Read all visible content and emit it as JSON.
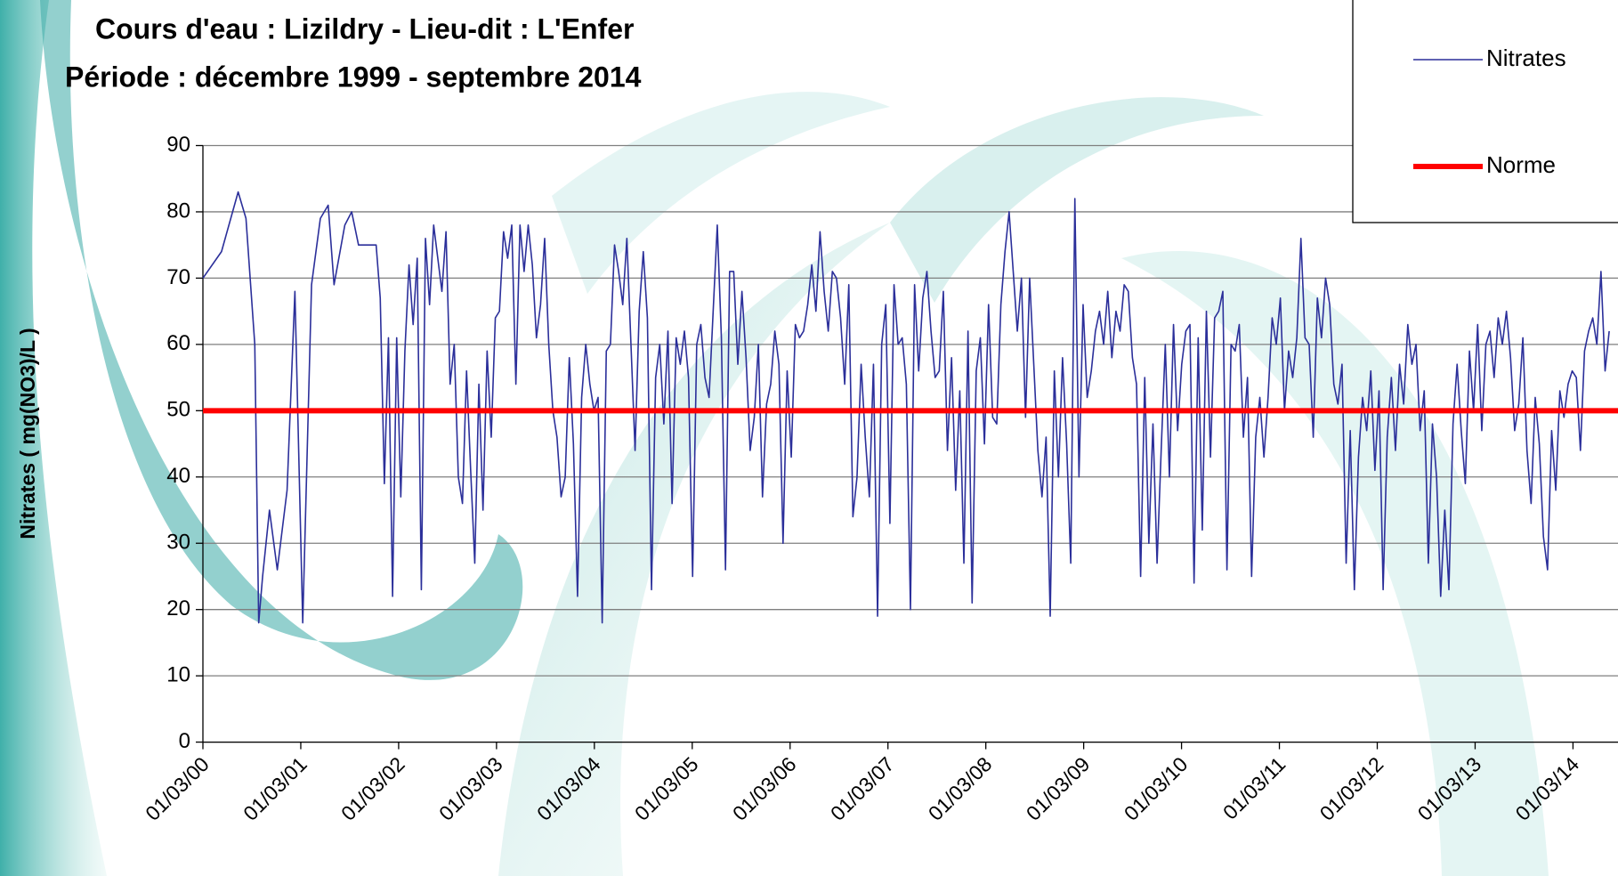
{
  "chart_data": {
    "type": "line",
    "title": "Cours d'eau : Lizildry  -  Lieu-dit : L'Enfer",
    "subtitle": "Période : décembre 1999 - septembre 2014",
    "ylabel": "Nitrates ( mg(NO3)/L )",
    "xlim": [
      2000.16,
      2014.62
    ],
    "ylim": [
      0,
      90
    ],
    "yticks": [
      0,
      10,
      20,
      30,
      40,
      50,
      60,
      70,
      80,
      90
    ],
    "xticks": [
      {
        "value": 2000.16,
        "label": "01/03/00"
      },
      {
        "value": 2001.16,
        "label": "01/03/01"
      },
      {
        "value": 2002.16,
        "label": "01/03/02"
      },
      {
        "value": 2003.16,
        "label": "01/03/03"
      },
      {
        "value": 2004.16,
        "label": "01/03/04"
      },
      {
        "value": 2005.16,
        "label": "01/03/05"
      },
      {
        "value": 2006.16,
        "label": "01/03/06"
      },
      {
        "value": 2007.16,
        "label": "01/03/07"
      },
      {
        "value": 2008.16,
        "label": "01/03/08"
      },
      {
        "value": 2009.16,
        "label": "01/03/09"
      },
      {
        "value": 2010.16,
        "label": "01/03/10"
      },
      {
        "value": 2011.16,
        "label": "01/03/11"
      },
      {
        "value": 2012.16,
        "label": "01/03/12"
      },
      {
        "value": 2013.16,
        "label": "01/03/13"
      },
      {
        "value": 2014.16,
        "label": "01/03/14"
      }
    ],
    "grid": true,
    "legend": "top-right",
    "series": [
      {
        "name": "Nitrates",
        "color": "#2b2f9a",
        "width": 1.6,
        "x": [
          2000.16,
          2000.35,
          2000.52,
          2000.6,
          2000.69,
          2000.73,
          2000.77,
          2000.84,
          2000.92,
          2001.02,
          2001.1,
          2001.18,
          2001.27,
          2001.36,
          2001.44,
          2001.5,
          2001.61,
          2001.68,
          2001.75,
          2001.93,
          2001.972,
          2002.014,
          2002.056,
          2002.098,
          2002.14,
          2002.182,
          2002.224,
          2002.266,
          2002.308,
          2002.35,
          2002.392,
          2002.434,
          2002.476,
          2002.518,
          2002.56,
          2002.602,
          2002.644,
          2002.686,
          2002.728,
          2002.77,
          2002.812,
          2002.854,
          2002.896,
          2002.938,
          2002.98,
          2003.022,
          2003.064,
          2003.106,
          2003.148,
          2003.19,
          2003.232,
          2003.274,
          2003.316,
          2003.358,
          2003.4,
          2003.442,
          2003.484,
          2003.526,
          2003.568,
          2003.61,
          2003.652,
          2003.694,
          2003.736,
          2003.778,
          2003.82,
          2003.862,
          2003.904,
          2003.946,
          2003.988,
          2004.03,
          2004.072,
          2004.114,
          2004.156,
          2004.198,
          2004.24,
          2004.282,
          2004.324,
          2004.366,
          2004.408,
          2004.45,
          2004.492,
          2004.534,
          2004.576,
          2004.618,
          2004.66,
          2004.702,
          2004.744,
          2004.786,
          2004.828,
          2004.87,
          2004.912,
          2004.954,
          2004.996,
          2005.038,
          2005.08,
          2005.122,
          2005.164,
          2005.206,
          2005.248,
          2005.29,
          2005.332,
          2005.374,
          2005.416,
          2005.458,
          2005.5,
          2005.542,
          2005.584,
          2005.626,
          2005.668,
          2005.71,
          2005.752,
          2005.794,
          2005.836,
          2005.878,
          2005.92,
          2005.962,
          2006.004,
          2006.046,
          2006.088,
          2006.13,
          2006.172,
          2006.214,
          2006.256,
          2006.298,
          2006.34,
          2006.382,
          2006.424,
          2006.466,
          2006.508,
          2006.55,
          2006.592,
          2006.634,
          2006.676,
          2006.718,
          2006.76,
          2006.802,
          2006.844,
          2006.886,
          2006.928,
          2006.97,
          2007.012,
          2007.054,
          2007.096,
          2007.138,
          2007.18,
          2007.222,
          2007.264,
          2007.306,
          2007.348,
          2007.39,
          2007.432,
          2007.474,
          2007.516,
          2007.558,
          2007.6,
          2007.642,
          2007.684,
          2007.726,
          2007.768,
          2007.81,
          2007.852,
          2007.894,
          2007.936,
          2007.978,
          2008.02,
          2008.062,
          2008.104,
          2008.146,
          2008.188,
          2008.23,
          2008.272,
          2008.314,
          2008.356,
          2008.398,
          2008.44,
          2008.482,
          2008.524,
          2008.566,
          2008.608,
          2008.65,
          2008.692,
          2008.734,
          2008.776,
          2008.818,
          2008.86,
          2008.902,
          2008.944,
          2008.986,
          2009.028,
          2009.07,
          2009.112,
          2009.154,
          2009.196,
          2009.238,
          2009.28,
          2009.322,
          2009.364,
          2009.406,
          2009.448,
          2009.49,
          2009.532,
          2009.574,
          2009.616,
          2009.658,
          2009.7,
          2009.742,
          2009.784,
          2009.826,
          2009.868,
          2009.91,
          2009.952,
          2009.994,
          2010.036,
          2010.078,
          2010.12,
          2010.162,
          2010.204,
          2010.246,
          2010.288,
          2010.33,
          2010.372,
          2010.414,
          2010.456,
          2010.498,
          2010.54,
          2010.582,
          2010.624,
          2010.666,
          2010.708,
          2010.75,
          2010.792,
          2010.834,
          2010.876,
          2010.918,
          2010.96,
          2011.002,
          2011.044,
          2011.086,
          2011.128,
          2011.17,
          2011.212,
          2011.254,
          2011.296,
          2011.338,
          2011.38,
          2011.422,
          2011.464,
          2011.506,
          2011.548,
          2011.59,
          2011.632,
          2011.674,
          2011.716,
          2011.758,
          2011.8,
          2011.842,
          2011.884,
          2011.926,
          2011.968,
          2012.01,
          2012.052,
          2012.094,
          2012.136,
          2012.178,
          2012.22,
          2012.262,
          2012.304,
          2012.346,
          2012.388,
          2012.43,
          2012.472,
          2012.514,
          2012.556,
          2012.598,
          2012.64,
          2012.682,
          2012.724,
          2012.766,
          2012.808,
          2012.85,
          2012.892,
          2012.934,
          2012.976,
          2013.018,
          2013.06,
          2013.102,
          2013.144,
          2013.186,
          2013.228,
          2013.27,
          2013.312,
          2013.354,
          2013.396,
          2013.438,
          2013.48,
          2013.522,
          2013.564,
          2013.606,
          2013.648,
          2013.69,
          2013.732,
          2013.774,
          2013.816,
          2013.858,
          2013.9,
          2013.942,
          2013.984,
          2014.026,
          2014.068,
          2014.11,
          2014.152,
          2014.194,
          2014.236,
          2014.278,
          2014.32,
          2014.362,
          2014.404,
          2014.446,
          2014.488,
          2014.53
        ],
        "values": [
          70,
          74,
          83,
          79,
          60,
          18,
          25,
          35,
          26,
          38,
          68,
          18,
          69,
          79,
          81,
          69,
          78,
          80,
          75,
          75,
          67,
          39,
          61,
          22,
          61,
          37,
          59,
          72,
          63,
          73,
          23,
          76,
          66,
          78,
          73,
          68,
          77,
          54,
          60,
          40,
          36,
          56,
          41,
          27,
          54,
          35,
          59,
          46,
          64,
          65,
          77,
          73,
          78,
          54,
          78,
          71,
          78,
          72,
          61,
          66,
          76,
          60,
          50,
          46,
          37,
          40,
          58,
          45,
          22,
          52,
          60,
          54,
          50,
          52,
          18,
          59,
          60,
          75,
          71,
          66,
          76,
          60,
          44,
          65,
          74,
          64,
          23,
          55,
          60,
          48,
          62,
          36,
          61,
          57,
          62,
          55,
          25,
          60,
          63,
          55,
          52,
          65,
          78,
          61,
          26,
          71,
          71,
          57,
          68,
          58,
          44,
          49,
          60,
          37,
          51,
          54,
          62,
          57,
          30,
          56,
          43,
          63,
          61,
          62,
          66,
          72,
          65,
          77,
          68,
          62,
          71,
          70,
          64,
          54,
          69,
          34,
          40,
          57,
          46,
          37,
          57,
          19,
          60,
          66,
          33,
          69,
          60,
          61,
          54,
          20,
          69,
          56,
          67,
          71,
          62,
          55,
          56,
          68,
          44,
          58,
          38,
          53,
          27,
          62,
          21,
          56,
          61,
          45,
          66,
          49,
          48,
          66,
          74,
          80,
          71,
          62,
          70,
          49,
          70,
          57,
          44,
          37,
          46,
          19,
          56,
          40,
          58,
          45,
          27,
          82,
          40,
          66,
          52,
          56,
          62,
          65,
          60,
          68,
          58,
          65,
          62,
          69,
          68,
          58,
          54,
          25,
          55,
          30,
          48,
          27,
          44,
          60,
          40,
          63,
          47,
          57,
          62,
          63,
          24,
          61,
          32,
          65,
          43,
          64,
          65,
          68,
          26,
          60,
          59,
          63,
          46,
          55,
          25,
          46,
          52,
          43,
          52,
          64,
          60,
          67,
          50,
          59,
          55,
          61,
          76,
          61,
          60,
          46,
          67,
          61,
          70,
          66,
          54,
          51,
          57,
          27,
          47,
          23,
          43,
          52,
          47,
          56,
          41,
          53,
          23,
          46,
          55,
          44,
          57,
          51,
          63,
          57,
          60,
          47,
          53,
          27,
          48,
          40,
          22,
          35,
          23,
          48,
          57,
          47,
          39,
          59,
          50,
          63,
          47,
          60,
          62,
          55,
          64,
          60,
          65,
          58,
          47,
          51,
          61,
          44,
          36,
          52,
          45,
          31,
          26,
          47,
          38,
          53,
          49,
          54,
          56,
          55,
          44,
          59,
          62,
          64,
          60,
          71,
          56,
          62
        ]
      },
      {
        "name": "Norme",
        "color": "#ff0000",
        "width": 6,
        "x": [
          2000.16,
          2014.62
        ],
        "values": [
          50,
          50
        ]
      }
    ]
  }
}
